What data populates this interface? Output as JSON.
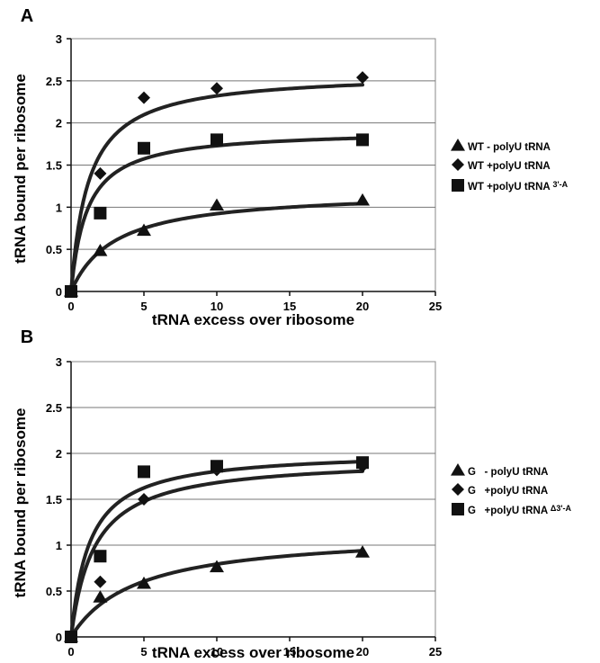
{
  "chart_data": [
    {
      "panel": "A",
      "type": "scatter",
      "xlabel": "tRNA excess over ribosome",
      "ylabel": "tRNA bound per ribosome",
      "xlim": [
        0,
        25
      ],
      "ylim": [
        0,
        3
      ],
      "xticks": [
        0,
        5,
        10,
        15,
        20,
        25
      ],
      "yticks": [
        0,
        0.5,
        1,
        1.5,
        2,
        2.5,
        3
      ],
      "grid": "horizontal",
      "legend_position": "right",
      "series": [
        {
          "name": "WT - polyU tRNA",
          "marker": "triangle",
          "fit_max": 1.2,
          "fit_k": 3.0,
          "x": [
            0,
            2,
            5,
            10,
            20
          ],
          "y": [
            0,
            0.48,
            0.72,
            1.02,
            1.08
          ]
        },
        {
          "name": "WT +polyU tRNA",
          "marker": "diamond",
          "fit_max": 2.6,
          "fit_k": 1.2,
          "x": [
            0,
            2,
            5,
            10,
            20
          ],
          "y": [
            0,
            1.4,
            2.3,
            2.41,
            2.54
          ]
        },
        {
          "name": "WT +polyU tRNA 3'-A",
          "marker": "square",
          "fit_max": 1.92,
          "fit_k": 1.1,
          "x": [
            0,
            2,
            5,
            10,
            20
          ],
          "y": [
            0,
            0.93,
            1.7,
            1.8,
            1.8
          ]
        }
      ]
    },
    {
      "panel": "B",
      "type": "scatter",
      "xlabel": "tRNA excess over ribosome",
      "ylabel": "tRNA bound per ribosome",
      "xlim": [
        0,
        25
      ],
      "ylim": [
        0,
        3
      ],
      "xticks": [
        0,
        5,
        10,
        15,
        20,
        25
      ],
      "yticks": [
        0,
        0.5,
        1,
        1.5,
        2,
        2.5,
        3
      ],
      "grid": "horizontal",
      "legend_position": "right",
      "series": [
        {
          "name": "G   - polyU tRNA",
          "marker": "triangle",
          "fit_max": 1.15,
          "fit_k": 4.5,
          "x": [
            0,
            2,
            5,
            10,
            20
          ],
          "y": [
            0,
            0.43,
            0.58,
            0.76,
            0.92
          ]
        },
        {
          "name": "G   +polyU tRNA",
          "marker": "diamond",
          "fit_max": 1.95,
          "fit_k": 1.6,
          "x": [
            0,
            2,
            5,
            10,
            20
          ],
          "y": [
            0,
            0.6,
            1.5,
            1.82,
            1.86
          ]
        },
        {
          "name": "G   +polyU tRNA Δ3'-A",
          "marker": "square",
          "fit_max": 2.03,
          "fit_k": 1.25,
          "x": [
            0,
            2,
            5,
            10,
            20
          ],
          "y": [
            0,
            0.88,
            1.8,
            1.86,
            1.9
          ]
        }
      ]
    }
  ]
}
